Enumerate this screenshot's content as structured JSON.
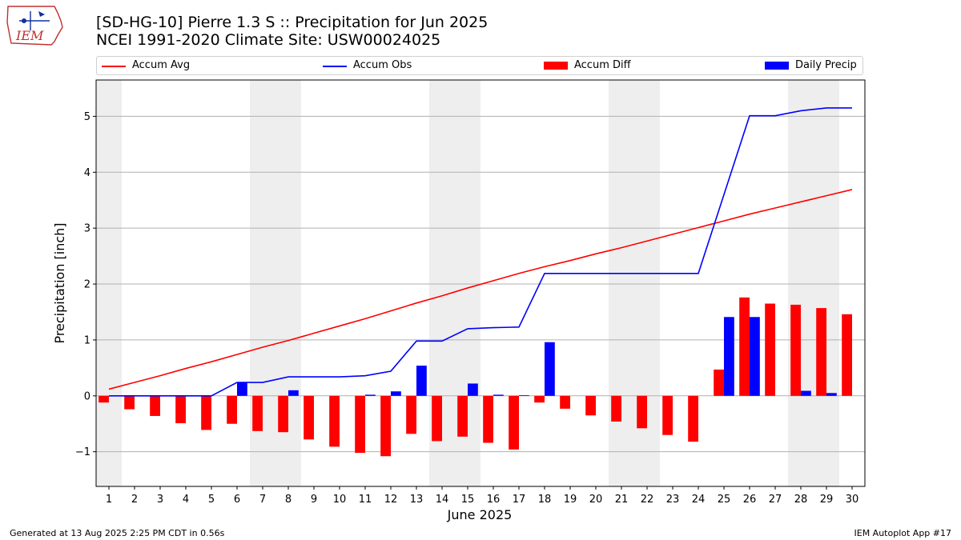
{
  "logo": {
    "text": "IEM",
    "name": "iem-logo"
  },
  "title_line1": "[SD-HG-10] Pierre 1.3 S :: Precipitation for Jun 2025",
  "title_line2": "NCEI 1991-2020 Climate Site: USW00024025",
  "legend": [
    {
      "label": "Accum Avg",
      "kind": "line",
      "color": "#ff0000"
    },
    {
      "label": "Accum Obs",
      "kind": "line",
      "color": "#0000ff"
    },
    {
      "label": "Accum Diff",
      "kind": "bar",
      "color": "#ff0000"
    },
    {
      "label": "Daily Precip",
      "kind": "bar",
      "color": "#0000ff"
    }
  ],
  "footer_left": "Generated at 13 Aug 2025 2:25 PM CDT in 0.56s",
  "footer_right": "IEM Autoplot App #17",
  "chart_data": {
    "type": "bar",
    "xlabel": "June 2025",
    "ylabel": "Precipitation [inch]",
    "x": [
      1,
      2,
      3,
      4,
      5,
      6,
      7,
      8,
      9,
      10,
      11,
      12,
      13,
      14,
      15,
      16,
      17,
      18,
      19,
      20,
      21,
      22,
      23,
      24,
      25,
      26,
      27,
      28,
      29,
      30
    ],
    "ylim": [
      -1.62,
      5.65
    ],
    "yticks": [
      -1,
      0,
      1,
      2,
      3,
      4,
      5
    ],
    "ytick_labels": [
      "−1",
      "0",
      "1",
      "2",
      "3",
      "4",
      "5"
    ],
    "grid": "horizontal",
    "legend_position": "top",
    "weekend_shading": [
      [
        1,
        1
      ],
      [
        7,
        8
      ],
      [
        14,
        15
      ],
      [
        21,
        22
      ],
      [
        28,
        29
      ]
    ],
    "series": [
      {
        "name": "Accum Avg",
        "kind": "line",
        "color": "#ff0000",
        "values": [
          0.12,
          0.24,
          0.36,
          0.49,
          0.61,
          0.74,
          0.87,
          0.99,
          1.12,
          1.25,
          1.38,
          1.52,
          1.66,
          1.79,
          1.93,
          2.06,
          2.19,
          2.31,
          2.42,
          2.54,
          2.65,
          2.77,
          2.89,
          3.01,
          3.13,
          3.25,
          3.36,
          3.47,
          3.58,
          3.69
        ]
      },
      {
        "name": "Accum Obs",
        "kind": "line",
        "color": "#0000ff",
        "values": [
          0,
          0,
          0,
          0,
          0,
          0.24,
          0.24,
          0.34,
          0.34,
          0.34,
          0.36,
          0.44,
          0.98,
          0.98,
          1.2,
          1.22,
          1.23,
          2.19,
          2.19,
          2.19,
          2.19,
          2.19,
          2.19,
          2.19,
          3.6,
          5.01,
          5.01,
          5.1,
          5.15,
          5.15
        ]
      },
      {
        "name": "Accum Diff",
        "kind": "bar",
        "color": "#ff0000",
        "values": [
          -0.12,
          -0.24,
          -0.36,
          -0.49,
          -0.61,
          -0.5,
          -0.63,
          -0.65,
          -0.78,
          -0.91,
          -1.02,
          -1.08,
          -0.68,
          -0.81,
          -0.73,
          -0.84,
          -0.96,
          -0.12,
          -0.23,
          -0.35,
          -0.46,
          -0.58,
          -0.7,
          -0.82,
          0.47,
          1.76,
          1.65,
          1.63,
          1.57,
          1.46
        ]
      },
      {
        "name": "Daily Precip",
        "kind": "bar",
        "color": "#0000ff",
        "values": [
          0,
          0,
          0,
          0,
          0,
          0.24,
          0,
          0.1,
          0,
          0,
          0.02,
          0.08,
          0.54,
          0,
          0.22,
          0.02,
          0.01,
          0.96,
          0,
          0,
          0,
          0,
          0,
          0,
          1.41,
          1.41,
          0,
          0.09,
          0.05,
          0
        ]
      }
    ]
  }
}
